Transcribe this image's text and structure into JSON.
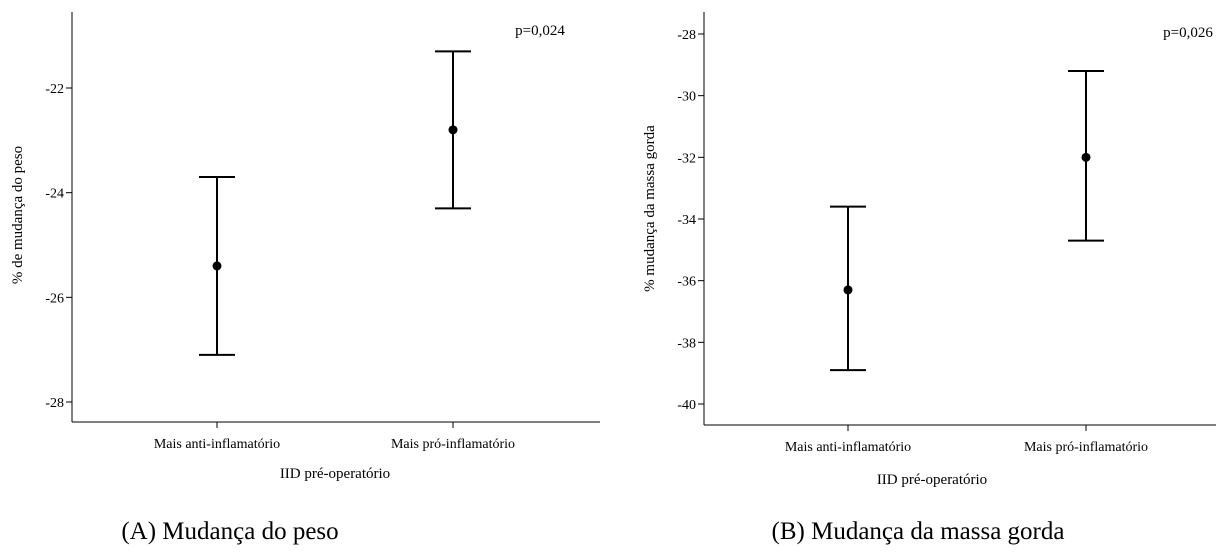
{
  "chart_data": [
    {
      "type": "errorbar",
      "caption": "(A) Mudança do peso",
      "xlabel": "IID pré-operatório",
      "ylabel": "% de mudança do peso",
      "annotation": "p=0,024",
      "categories": [
        "Mais anti-inflamatório",
        "Mais pró-inflamatório"
      ],
      "ylim": [
        -28.4,
        -20.7
      ],
      "yticks": [
        -28,
        -26,
        -24,
        -22
      ],
      "ytick_labels": [
        "-28",
        "-26",
        "-24",
        "-22"
      ],
      "series": [
        {
          "mean": [
            -25.4,
            -22.8
          ],
          "lower": [
            -27.1,
            -24.3
          ],
          "upper": [
            -23.7,
            -21.3
          ]
        }
      ]
    },
    {
      "type": "errorbar",
      "caption": "(B) Mudança da massa gorda",
      "xlabel": "IID pré-operatório",
      "ylabel": "% mudança da massa gorda",
      "annotation": "p=0,026",
      "categories": [
        "Mais anti-inflamatório",
        "Mais pró-inflamatório"
      ],
      "ylim": [
        -40.7,
        -27.3
      ],
      "yticks": [
        -40,
        -38,
        -36,
        -34,
        -32,
        -30,
        -28
      ],
      "ytick_labels": [
        "-40",
        "-38",
        "-36",
        "-34",
        "-32",
        "-30",
        "-28"
      ],
      "series": [
        {
          "mean": [
            -36.3,
            -32.0
          ],
          "lower": [
            -38.9,
            -34.7
          ],
          "upper": [
            -33.6,
            -29.2
          ]
        }
      ]
    }
  ]
}
